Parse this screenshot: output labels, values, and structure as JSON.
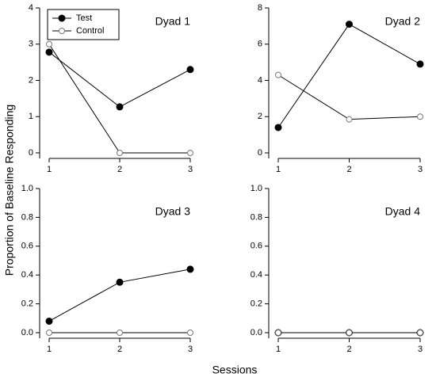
{
  "ylabel": "Proportion of Baseline Responding",
  "xlabel": "Sessions",
  "chart_data": [
    {
      "type": "line",
      "title": "Dyad 1",
      "x": [
        1,
        2,
        3
      ],
      "xlim": [
        1,
        3
      ],
      "xticks": [
        1,
        2,
        3
      ],
      "ylim": [
        0,
        4
      ],
      "yticks": [
        0,
        1,
        2,
        3,
        4
      ],
      "legend": "top-left",
      "series": [
        {
          "name": "Test",
          "color": "#000000",
          "values": [
            2.78,
            1.27,
            2.3
          ]
        },
        {
          "name": "Control",
          "color": "#ffffff",
          "values": [
            3,
            0,
            0
          ]
        }
      ]
    },
    {
      "type": "line",
      "title": "Dyad 2",
      "x": [
        1,
        2,
        3
      ],
      "xlim": [
        1,
        3
      ],
      "xticks": [
        1,
        2,
        3
      ],
      "ylim": [
        0,
        8
      ],
      "yticks": [
        0,
        2,
        4,
        6,
        8
      ],
      "series": [
        {
          "color": "#000000",
          "values": [
            1.4,
            7.1,
            4.9
          ]
        },
        {
          "color": "#ffffff",
          "values": [
            4.3,
            1.85,
            2.0
          ]
        }
      ]
    },
    {
      "type": "line",
      "title": "Dyad 3",
      "x": [
        1,
        2,
        3
      ],
      "xlim": [
        1,
        3
      ],
      "xticks": [
        1,
        2,
        3
      ],
      "ylim": [
        0,
        1
      ],
      "yticks": [
        {
          "value": 0,
          "label": "0.0"
        },
        0.2,
        0.4,
        0.6,
        0.8,
        {
          "value": 1,
          "label": "1.0"
        }
      ],
      "series": [
        {
          "color": "#000000",
          "values": [
            0.08,
            0.35,
            0.44
          ]
        },
        {
          "color": "#ffffff",
          "values": [
            0,
            0,
            0
          ]
        }
      ]
    },
    {
      "type": "line",
      "title": "Dyad 4",
      "x": [
        1,
        2,
        3
      ],
      "xlim": [
        1,
        3
      ],
      "xticks": [
        1,
        2,
        3
      ],
      "ylim": [
        0,
        1
      ],
      "yticks": [
        {
          "value": 0,
          "label": "0.0"
        },
        0.2,
        0.4,
        0.6,
        0.8,
        {
          "value": 1,
          "label": "1.0"
        }
      ],
      "series": [
        {
          "color": "#000000",
          "values": [
            0,
            0,
            0
          ]
        },
        {
          "color": "#ffffff",
          "values": [
            0,
            0,
            0
          ]
        }
      ]
    }
  ]
}
